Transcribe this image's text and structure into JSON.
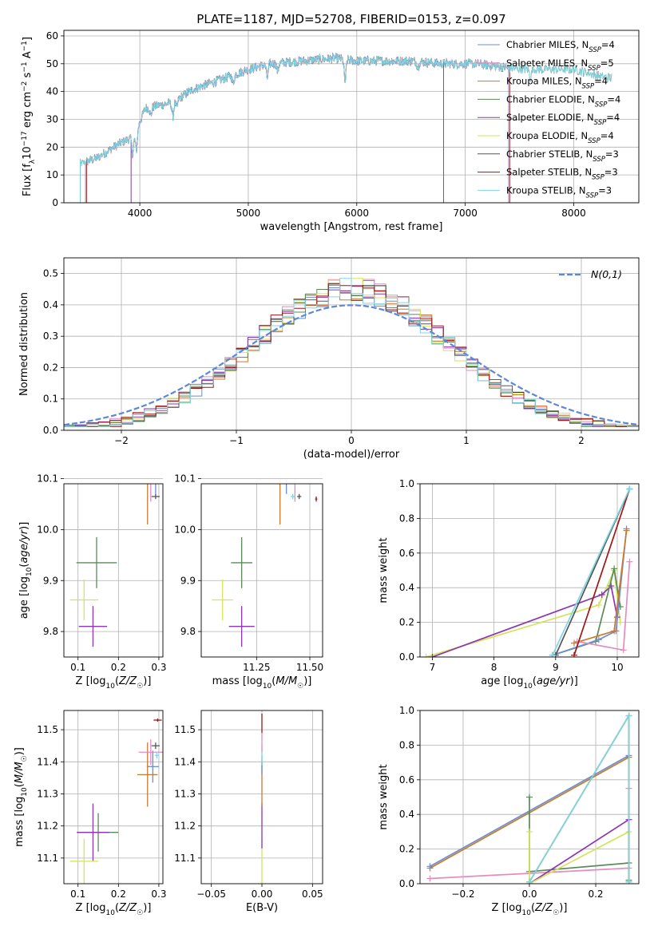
{
  "figure_title": "PLATE=1187, MJD=52708, FIBERID=0153, z=0.097",
  "models": [
    {
      "id": "chabrier-miles",
      "name": "Chabrier MILES, N",
      "sub": "SSP",
      "n": "=4",
      "color": "#6a8fd0"
    },
    {
      "id": "salpeter-miles",
      "name": "Salpeter MILES, N",
      "sub": "SSP",
      "n": "=5",
      "color": "#e58bbf"
    },
    {
      "id": "kroupa-miles",
      "name": "Kroupa MILES, N",
      "sub": "SSP",
      "n": "=4",
      "color": "#c87a2e"
    },
    {
      "id": "chabrier-elodie",
      "name": "Chabrier ELODIE, N",
      "sub": "SSP",
      "n": "=4",
      "color": "#5a8a5a"
    },
    {
      "id": "salpeter-elodie",
      "name": "Salpeter ELODIE, N",
      "sub": "SSP",
      "n": "=4",
      "color": "#8e35b0"
    },
    {
      "id": "kroupa-elodie",
      "name": "Kroupa ELODIE, N",
      "sub": "SSP",
      "n": "=4",
      "color": "#d4e35a"
    },
    {
      "id": "chabrier-stelib",
      "name": "Chabrier STELIB, N",
      "sub": "SSP",
      "n": "=3",
      "color": "#555555"
    },
    {
      "id": "salpeter-stelib",
      "name": "Salpeter STELIB, N",
      "sub": "SSP",
      "n": "=3",
      "color": "#a01515"
    },
    {
      "id": "kroupa-stelib",
      "name": "Kroupa STELIB, N",
      "sub": "SSP",
      "n": "=3",
      "color": "#7fd6e0"
    }
  ],
  "chart_data": [
    {
      "id": "spectrum",
      "type": "line",
      "xlabel": "wavelength [Angstrom, rest frame]",
      "ylabel": "Flux [f_λ10^-17 erg cm^-2 s^-1 A^-1]",
      "xlim": [
        3300,
        8600
      ],
      "ylim": [
        0,
        62
      ],
      "xticks": [
        4000,
        5000,
        6000,
        7000,
        8000
      ],
      "yticks": [
        0,
        10,
        20,
        30,
        40,
        50,
        60
      ],
      "legend": "right",
      "spectrum_knots": [
        [
          3450,
          14
        ],
        [
          3600,
          16
        ],
        [
          3800,
          21
        ],
        [
          3950,
          24
        ],
        [
          4050,
          34
        ],
        [
          4300,
          36
        ],
        [
          4500,
          41
        ],
        [
          4800,
          45
        ],
        [
          5000,
          48
        ],
        [
          5200,
          50
        ],
        [
          5500,
          51
        ],
        [
          5800,
          52
        ],
        [
          6000,
          51
        ],
        [
          6300,
          51
        ],
        [
          6500,
          51
        ],
        [
          6800,
          50
        ],
        [
          7100,
          50
        ],
        [
          7500,
          48
        ],
        [
          8000,
          48
        ],
        [
          8300,
          45
        ]
      ],
      "absorption_lines": [
        [
          3934,
          6
        ],
        [
          3969,
          7
        ],
        [
          4102,
          3
        ],
        [
          4305,
          5
        ],
        [
          4340,
          3
        ],
        [
          4861,
          3
        ],
        [
          5175,
          5
        ],
        [
          5270,
          3
        ],
        [
          5892,
          8
        ],
        [
          6563,
          2
        ],
        [
          7600,
          3
        ]
      ],
      "series_range": {
        "chabrier-miles": [
          3500,
          7400
        ],
        "salpeter-miles": [
          3500,
          7400
        ],
        "kroupa-miles": [
          3500,
          7400
        ],
        "chabrier-elodie": [
          3920,
          6800
        ],
        "salpeter-elodie": [
          3920,
          6800
        ],
        "kroupa-elodie": [
          3920,
          6800
        ],
        "chabrier-stelib": [
          3450,
          8350
        ],
        "salpeter-stelib": [
          3510,
          7410
        ],
        "kroupa-stelib": [
          3450,
          8350
        ]
      }
    },
    {
      "id": "residuals",
      "type": "step",
      "xlabel": "(data-model)/error",
      "ylabel": "Normed distribution",
      "xlim": [
        -2.5,
        2.5
      ],
      "ylim": [
        0,
        0.55
      ],
      "xticks": [
        -2,
        -1,
        0,
        1,
        2
      ],
      "yticks": [
        0.0,
        0.1,
        0.2,
        0.3,
        0.4,
        0.5
      ],
      "bin_width": 0.1,
      "reference_label": "N(0,1)",
      "reference_color": "#5b88d8",
      "histogram_peak": 0.45,
      "histogram_sigma": 0.85,
      "legend": "upper-right"
    },
    {
      "id": "age-vs-z",
      "type": "errorbar",
      "xlabel": "Z [log10(Z/Z☉)]",
      "ylabel": "age [log10(age/yr)]",
      "xlim": [
        0.065,
        0.31
      ],
      "ylim": [
        9.75,
        10.09
      ],
      "xticks": [
        0.1,
        0.2,
        0.3
      ],
      "yticks": [
        9.8,
        9.9,
        10.0,
        10.1
      ],
      "points": [
        {
          "model": "chabrier-elodie",
          "x": 0.146,
          "y": 9.935,
          "xerr": 0.05,
          "yerr": 0.05
        },
        {
          "model": "kroupa-elodie",
          "x": 0.115,
          "y": 9.862,
          "xerr": 0.035,
          "yerr": 0.04
        },
        {
          "model": "salpeter-elodie",
          "x": 0.137,
          "y": 9.81,
          "xerr": 0.035,
          "yerr": 0.04
        },
        {
          "model": "kroupa-miles",
          "x": 0.272,
          "y": 10.12,
          "xerr": 0.02,
          "yerr": 0.11
        },
        {
          "model": "chabrier-miles",
          "x": 0.292,
          "y": 10.12,
          "xerr": 0.01,
          "yerr": 0.05
        },
        {
          "model": "salpeter-miles",
          "x": 0.28,
          "y": 10.1,
          "xerr": 0.02,
          "yerr": 0.045
        },
        {
          "model": "chabrier-stelib",
          "x": 0.292,
          "y": 10.065,
          "xerr": 0.01,
          "yerr": 0.005
        },
        {
          "model": "salpeter-stelib",
          "x": 0.3,
          "y": 10.12,
          "xerr": 0.005,
          "yerr": 0.005
        }
      ]
    },
    {
      "id": "age-vs-mass",
      "type": "errorbar",
      "xlabel": "mass [log10(M/M☉)]",
      "ylabel": "",
      "xlim": [
        10.99,
        11.56
      ],
      "ylim": [
        9.75,
        10.09
      ],
      "xticks": [
        11.25,
        11.5
      ],
      "yticks": [
        9.8,
        9.9,
        10.0,
        10.1
      ],
      "points": [
        {
          "model": "chabrier-elodie",
          "x": 11.18,
          "y": 9.935,
          "xerr": 0.05,
          "yerr": 0.05
        },
        {
          "model": "kroupa-elodie",
          "x": 11.09,
          "y": 9.862,
          "xerr": 0.05,
          "yerr": 0.04
        },
        {
          "model": "salpeter-elodie",
          "x": 11.18,
          "y": 9.81,
          "xerr": 0.06,
          "yerr": 0.04
        },
        {
          "model": "kroupa-miles",
          "x": 11.36,
          "y": 10.12,
          "xerr": 0.05,
          "yerr": 0.11
        },
        {
          "model": "chabrier-miles",
          "x": 11.39,
          "y": 10.12,
          "xerr": 0.02,
          "yerr": 0.05
        },
        {
          "model": "salpeter-miles",
          "x": 11.43,
          "y": 10.1,
          "xerr": 0.05,
          "yerr": 0.045
        },
        {
          "model": "kroupa-stelib",
          "x": 11.42,
          "y": 10.065,
          "xerr": 0.01,
          "yerr": 0.005
        },
        {
          "model": "chabrier-stelib",
          "x": 11.45,
          "y": 10.065,
          "xerr": 0.01,
          "yerr": 0.005
        },
        {
          "model": "salpeter-stelib",
          "x": 11.53,
          "y": 10.06,
          "xerr": 0.005,
          "yerr": 0.005
        }
      ]
    },
    {
      "id": "weight-vs-age",
      "type": "line",
      "xlabel": "age  [log10(age/yr)]",
      "ylabel": "mass weight",
      "xlim": [
        6.8,
        10.35
      ],
      "ylim": [
        0,
        1.0
      ],
      "xticks": [
        7,
        8,
        9,
        10
      ],
      "yticks": [
        0.0,
        0.2,
        0.4,
        0.6,
        0.8,
        1.0
      ],
      "series": [
        {
          "model": "kroupa-elodie",
          "points": [
            [
              6.9,
              0.0
            ],
            [
              9.7,
              0.3
            ],
            [
              9.95,
              0.5
            ],
            [
              10.05,
              0.2
            ]
          ]
        },
        {
          "model": "salpeter-elodie",
          "points": [
            [
              7.0,
              0.0
            ],
            [
              9.75,
              0.36
            ],
            [
              9.9,
              0.41
            ],
            [
              10.0,
              0.23
            ]
          ]
        },
        {
          "model": "chabrier-elodie",
          "points": [
            [
              8.95,
              0.01
            ],
            [
              9.65,
              0.09
            ],
            [
              9.95,
              0.51
            ],
            [
              10.05,
              0.29
            ]
          ]
        },
        {
          "model": "chabrier-miles",
          "points": [
            [
              8.95,
              0.01
            ],
            [
              9.7,
              0.1
            ],
            [
              9.98,
              0.15
            ],
            [
              10.15,
              0.74
            ]
          ]
        },
        {
          "model": "kroupa-miles",
          "points": [
            [
              9.3,
              0.08
            ],
            [
              9.95,
              0.15
            ],
            [
              10.15,
              0.73
            ]
          ]
        },
        {
          "model": "salpeter-miles",
          "points": [
            [
              9.35,
              0.09
            ],
            [
              10.1,
              0.04
            ],
            [
              10.2,
              0.55
            ]
          ]
        },
        {
          "model": "salpeter-stelib",
          "points": [
            [
              9.3,
              0.01
            ],
            [
              10.2,
              0.97
            ]
          ]
        },
        {
          "model": "chabrier-stelib",
          "points": [
            [
              9.0,
              0.01
            ],
            [
              10.2,
              0.97
            ]
          ]
        },
        {
          "model": "kroupa-stelib",
          "points": [
            [
              8.95,
              0.01
            ],
            [
              10.2,
              0.97
            ]
          ]
        }
      ]
    },
    {
      "id": "mass-vs-z",
      "type": "errorbar",
      "xlabel": "Z [log10(Z/Z☉)]",
      "ylabel": "mass [log10(M/M☉)]",
      "xlim": [
        0.065,
        0.31
      ],
      "ylim": [
        11.02,
        11.56
      ],
      "xticks": [
        0.1,
        0.2,
        0.3
      ],
      "yticks": [
        11.1,
        11.2,
        11.3,
        11.4,
        11.5
      ],
      "points": [
        {
          "model": "chabrier-elodie",
          "x": 0.15,
          "y": 11.18,
          "xerr": 0.05,
          "yerr": 0.06
        },
        {
          "model": "salpeter-elodie",
          "x": 0.137,
          "y": 11.18,
          "xerr": 0.04,
          "yerr": 0.09
        },
        {
          "model": "kroupa-elodie",
          "x": 0.115,
          "y": 11.09,
          "xerr": 0.035,
          "yerr": 0.07
        },
        {
          "model": "chabrier-miles",
          "x": 0.285,
          "y": 11.385,
          "xerr": 0.015,
          "yerr": 0.05
        },
        {
          "model": "kroupa-miles",
          "x": 0.272,
          "y": 11.36,
          "xerr": 0.025,
          "yerr": 0.1
        },
        {
          "model": "salpeter-miles",
          "x": 0.28,
          "y": 11.43,
          "xerr": 0.03,
          "yerr": 0.04
        },
        {
          "model": "kroupa-stelib",
          "x": 0.295,
          "y": 11.42,
          "xerr": 0.005,
          "yerr": 0.01
        },
        {
          "model": "chabrier-stelib",
          "x": 0.292,
          "y": 11.45,
          "xerr": 0.01,
          "yerr": 0.01
        },
        {
          "model": "salpeter-stelib",
          "x": 0.297,
          "y": 11.53,
          "xerr": 0.01,
          "yerr": 0.005
        }
      ]
    },
    {
      "id": "mass-vs-ebv",
      "type": "errorbar",
      "xlabel": "E(B-V)",
      "ylabel": "",
      "xlim": [
        -0.06,
        0.06
      ],
      "ylim": [
        11.02,
        11.56
      ],
      "xticks": [
        -0.05,
        0.0,
        0.05
      ],
      "yticks": [
        11.1,
        11.2,
        11.3,
        11.4,
        11.5
      ],
      "points": [
        {
          "model": "kroupa-elodie",
          "x": 0.0,
          "y": 11.09,
          "xerr": 0.0,
          "yerr": 0.07
        },
        {
          "model": "salpeter-elodie",
          "x": 0.0,
          "y": 11.2,
          "xerr": 0.0,
          "yerr": 0.07
        },
        {
          "model": "kroupa-miles",
          "x": 0.0,
          "y": 11.33,
          "xerr": 0.0,
          "yerr": 0.07
        },
        {
          "model": "chabrier-miles",
          "x": 0.0,
          "y": 11.39,
          "xerr": 0.0,
          "yerr": 0.03
        },
        {
          "model": "kroupa-stelib",
          "x": 0.0,
          "y": 11.42,
          "xerr": 0.0,
          "yerr": 0.03
        },
        {
          "model": "salpeter-miles",
          "x": 0.0,
          "y": 11.46,
          "xerr": 0.0,
          "yerr": 0.03
        },
        {
          "model": "salpeter-stelib",
          "x": 0.0,
          "y": 11.52,
          "xerr": 0.0,
          "yerr": 0.03
        }
      ]
    },
    {
      "id": "weight-vs-z",
      "type": "line",
      "xlabel": "Z [log10(Z/Z☉)]",
      "ylabel": "mass weight",
      "xlim": [
        -0.33,
        0.33
      ],
      "ylim": [
        0,
        1.0
      ],
      "xticks": [
        -0.2,
        0.0,
        0.2
      ],
      "yticks": [
        0.0,
        0.2,
        0.4,
        0.6,
        0.8,
        1.0
      ],
      "series": [
        {
          "model": "kroupa-miles",
          "points": [
            [
              -0.3,
              0.09
            ],
            [
              0.3,
              0.73
            ]
          ]
        },
        {
          "model": "chabrier-miles",
          "points": [
            [
              -0.3,
              0.1
            ],
            [
              0.3,
              0.74
            ]
          ]
        },
        {
          "model": "salpeter-miles",
          "points": [
            [
              -0.3,
              0.03
            ],
            [
              0.3,
              0.09
            ],
            [
              0.3,
              0.55
            ]
          ]
        },
        {
          "model": "chabrier-elodie",
          "points": [
            [
              0.0,
              0.5
            ],
            [
              0.0,
              0.07
            ],
            [
              0.3,
              0.12
            ],
            [
              0.3,
              0.02
            ]
          ]
        },
        {
          "model": "salpeter-elodie",
          "points": [
            [
              0.0,
              0.0
            ],
            [
              0.3,
              0.37
            ]
          ]
        },
        {
          "model": "kroupa-elodie",
          "points": [
            [
              0.0,
              0.3
            ],
            [
              0.0,
              0.0
            ],
            [
              0.3,
              0.3
            ]
          ]
        },
        {
          "model": "chabrier-stelib",
          "points": [
            [
              0.0,
              0.01
            ],
            [
              0.3,
              0.97
            ],
            [
              0.3,
              0.01
            ]
          ]
        },
        {
          "model": "kroupa-stelib",
          "points": [
            [
              0.0,
              0.01
            ],
            [
              0.3,
              0.97
            ],
            [
              0.3,
              0.01
            ]
          ]
        }
      ]
    }
  ]
}
